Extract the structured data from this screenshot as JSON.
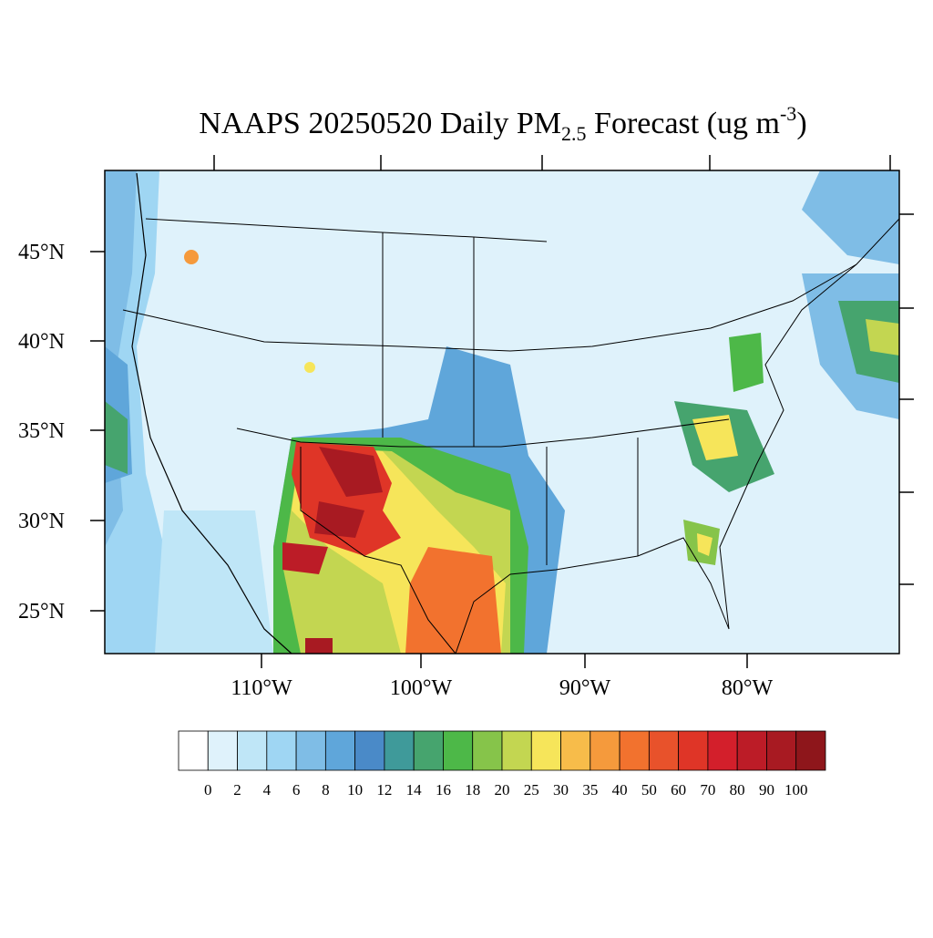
{
  "title": {
    "main": "NAAPS 20250520 Daily PM",
    "subscript": "2.5",
    "middle": " Forecast (ug m",
    "superscript": "-3",
    "end": ")"
  },
  "map": {
    "lat_labels": [
      "45°N",
      "40°N",
      "35°N",
      "30°N",
      "25°N"
    ],
    "lon_labels": [
      "110°W",
      "100°W",
      "90°W",
      "80°W"
    ]
  },
  "colorbar": {
    "colors": [
      "#ffffff",
      "#dff2fb",
      "#bfe6f7",
      "#9fd6f3",
      "#7fbde6",
      "#5fa6da",
      "#4a8ac8",
      "#3f9a9a",
      "#46a46e",
      "#4db848",
      "#86c44a",
      "#c3d651",
      "#f6e55a",
      "#f7bc4a",
      "#f59a3c",
      "#f2722e",
      "#e8522b",
      "#df3527",
      "#d31f2b",
      "#bc1c27",
      "#a81a22",
      "#8e161b"
    ],
    "labels": [
      0,
      2,
      4,
      6,
      8,
      10,
      12,
      14,
      16,
      18,
      20,
      25,
      30,
      35,
      40,
      50,
      60,
      70,
      80,
      90,
      100
    ]
  }
}
